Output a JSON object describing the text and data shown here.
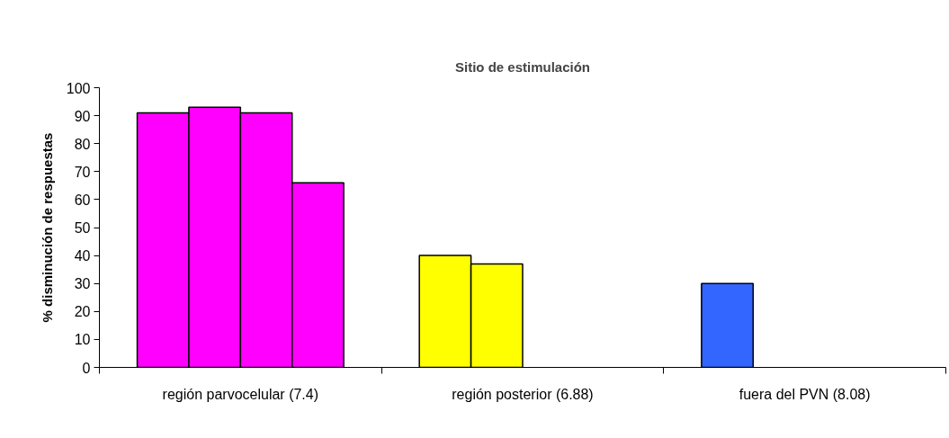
{
  "chart_data": {
    "type": "bar",
    "title": "Sitio de estimulación",
    "ylabel": "% disminución de respuestas",
    "categories": [
      "región parvocelular (7.4)",
      "región posterior (6.88)",
      "fuera del PVN (8.08)"
    ],
    "series": [
      {
        "colors": [
          "#ff00ff",
          "#ffff00",
          "#3366ff"
        ],
        "values": [
          91,
          40,
          30
        ]
      },
      {
        "colors": [
          "#ff00ff",
          "#ffff00",
          null
        ],
        "values": [
          93,
          37,
          null
        ]
      },
      {
        "colors": [
          "#ff00ff",
          null,
          null
        ],
        "values": [
          91,
          null,
          null
        ]
      },
      {
        "colors": [
          "#ff00ff",
          null,
          null
        ],
        "values": [
          66,
          null,
          null
        ]
      }
    ],
    "ylim": [
      0,
      100
    ],
    "yticks": [
      0,
      10,
      20,
      30,
      40,
      50,
      60,
      70,
      80,
      90,
      100
    ]
  }
}
